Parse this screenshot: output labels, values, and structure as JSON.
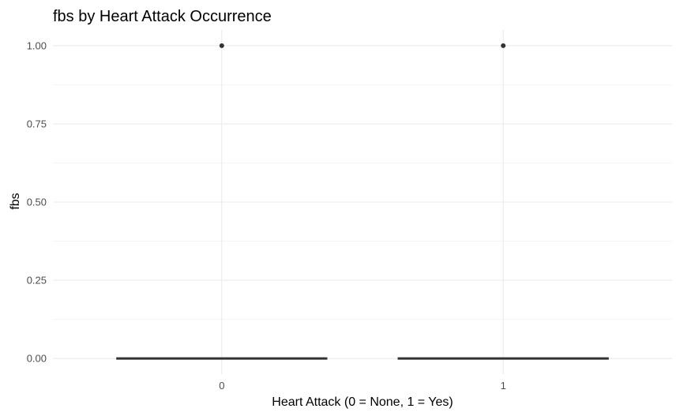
{
  "chart_data": {
    "type": "boxplot",
    "title": "fbs by Heart Attack Occurrence",
    "xlabel": "Heart Attack (0 = None, 1 = Yes)",
    "ylabel": "fbs",
    "categories": [
      "0",
      "1"
    ],
    "y_ticks": [
      0,
      0.25,
      0.5,
      0.75,
      1
    ],
    "y_tick_labels": [
      "0.00",
      "0.25",
      "0.50",
      "0.75",
      "1.00"
    ],
    "ylim": [
      0,
      1
    ],
    "boxes": [
      {
        "category": "0",
        "min": 0,
        "q1": 0,
        "median": 0,
        "q3": 0,
        "max": 0,
        "outliers": [
          1
        ]
      },
      {
        "category": "1",
        "min": 0,
        "q1": 0,
        "median": 0,
        "q3": 0,
        "max": 0,
        "outliers": [
          1
        ]
      }
    ],
    "grid": true,
    "legend": "none",
    "colors": {
      "box_line": "#333333",
      "outlier": "#333333",
      "grid": "#ebebeb"
    }
  }
}
